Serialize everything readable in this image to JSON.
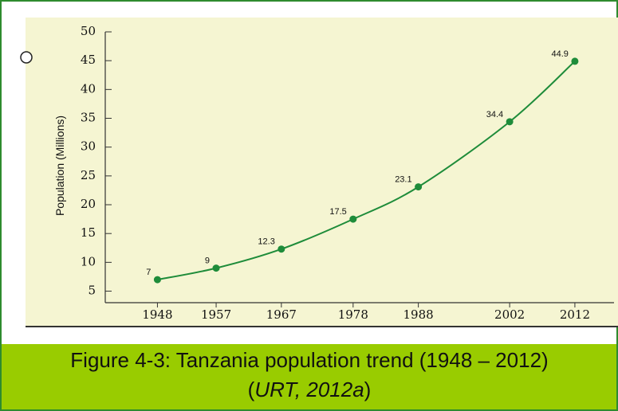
{
  "chart_data": {
    "type": "line",
    "ylabel": "Population (Millions)",
    "x": [
      1948,
      1957,
      1967,
      1978,
      1988,
      2002,
      2012
    ],
    "series": [
      {
        "name": "Population",
        "color": "#1e8c3a",
        "values": [
          7,
          9,
          12.3,
          17.5,
          23.1,
          34.4,
          44.9
        ]
      }
    ],
    "xlim": [
      1940,
      2018
    ],
    "xticks": [
      1948,
      1957,
      1967,
      1978,
      1988,
      2002,
      2012
    ],
    "ylim": [
      3,
      50
    ],
    "yticks": [
      5,
      10,
      15,
      20,
      25,
      30,
      35,
      40,
      45,
      50
    ]
  },
  "caption": {
    "text": "Figure 4-3: Tanzania population trend (1948 – 2012)",
    "open": "(",
    "source": "URT, 2012a",
    "close": ")"
  }
}
